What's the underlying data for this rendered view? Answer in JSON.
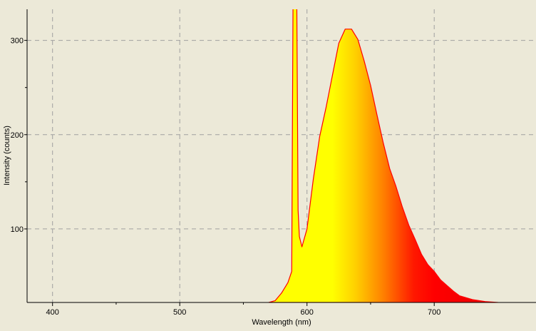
{
  "chart_data": {
    "type": "area",
    "title": "",
    "xlabel": "Wavelength (nm)",
    "ylabel": "Intensity (counts)",
    "xlim": [
      380,
      780
    ],
    "ylim": [
      22,
      333
    ],
    "xticks": [
      400,
      500,
      600,
      700
    ],
    "yticks": [
      100,
      200,
      300
    ],
    "grid": true,
    "legend": "none",
    "fill": "wavelength color gradient (yellow to orange to red to dark red)",
    "colors": {
      "outline": "#ff0000",
      "background": "#ece9d8",
      "grid": "#a0a0a0"
    },
    "series": [
      {
        "x": [
          570,
          575,
          580,
          585,
          588,
          589,
          590,
          592,
          593,
          594,
          596,
          600,
          605,
          610,
          615,
          620,
          625,
          630,
          635,
          640,
          645,
          650,
          655,
          660,
          665,
          670,
          675,
          680,
          685,
          690,
          695,
          700,
          705,
          710,
          715,
          720,
          730,
          740,
          750
        ],
        "y": [
          22,
          24,
          32,
          43,
          55,
          340,
          340,
          340,
          120,
          92,
          81,
          100,
          153,
          198,
          229,
          263,
          297,
          312,
          312,
          301,
          278,
          252,
          221,
          191,
          164,
          145,
          123,
          104,
          89,
          73,
          62,
          55,
          46,
          40,
          34,
          29,
          25,
          23,
          22
        ]
      }
    ]
  }
}
